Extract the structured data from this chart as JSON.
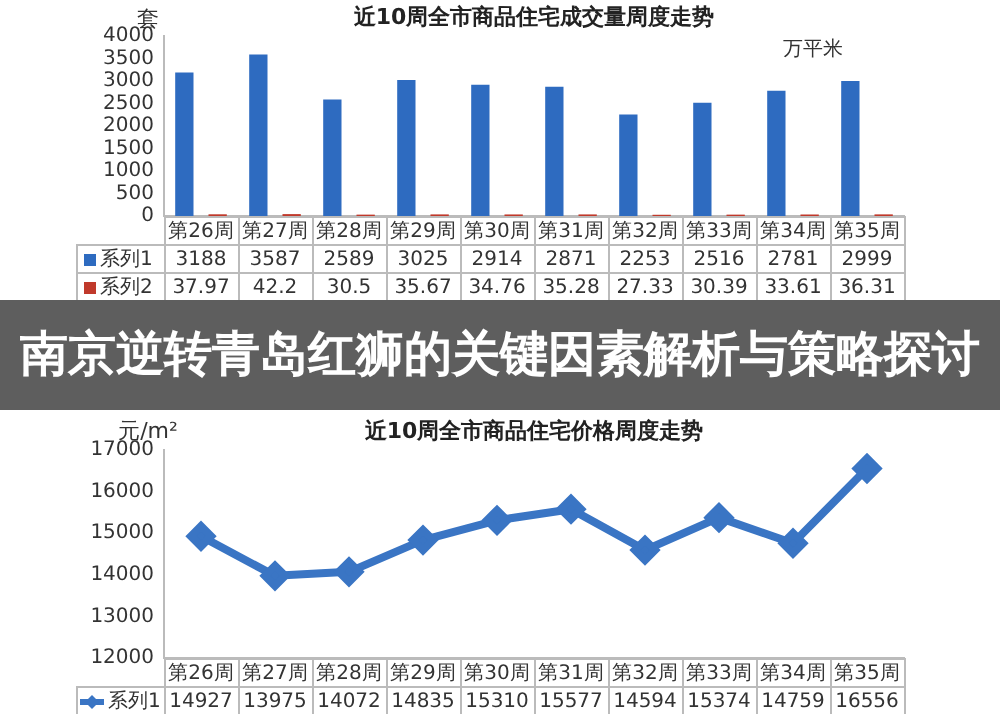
{
  "chart_data": [
    {
      "type": "bar",
      "title": "近10周全市商品住宅成交量周度走势",
      "ylabel": "套",
      "annotations": [
        "万平米",
        "南京逆转青岛红狮的关键因素解析与策略探讨"
      ],
      "categories": [
        "第26周",
        "第27周",
        "第28周",
        "第29周",
        "第30周",
        "第31周",
        "第32周",
        "第33周",
        "第34周",
        "第35周"
      ],
      "series": [
        {
          "name": "系列1",
          "color": "#2e6bc0",
          "values": [
            3188,
            3587,
            2589,
            3025,
            2914,
            2871,
            2253,
            2516,
            2781,
            2999
          ]
        },
        {
          "name": "系列2",
          "color": "#c0392b",
          "values": [
            37.97,
            42.2,
            30.5,
            35.67,
            34.76,
            35.28,
            27.33,
            30.39,
            33.61,
            36.31
          ]
        }
      ],
      "ylim": [
        0,
        4000
      ],
      "yticks": [
        0,
        500,
        1000,
        1500,
        2000,
        2500,
        3000,
        3500,
        4000
      ],
      "data_labels": true,
      "legend": "bottom left"
    },
    {
      "type": "line",
      "title": "近10周全市商品住宅价格周度走势",
      "ylabel": "元/m²",
      "categories": [
        "第26周",
        "第27周",
        "第28周",
        "第29周",
        "第30周",
        "第31周",
        "第32周",
        "第33周",
        "第34周",
        "第35周"
      ],
      "series": [
        {
          "name": "系列1",
          "color": "#3a75c4",
          "values": [
            14927,
            13975,
            14072,
            14835,
            15310,
            15577,
            14594,
            15374,
            14759,
            16556
          ]
        }
      ],
      "ylim": [
        12000,
        17000
      ],
      "yticks": [
        12000,
        13000,
        14000,
        15000,
        16000,
        17000
      ],
      "marker": "diamond",
      "data_labels": true,
      "legend": "bottom left"
    }
  ]
}
